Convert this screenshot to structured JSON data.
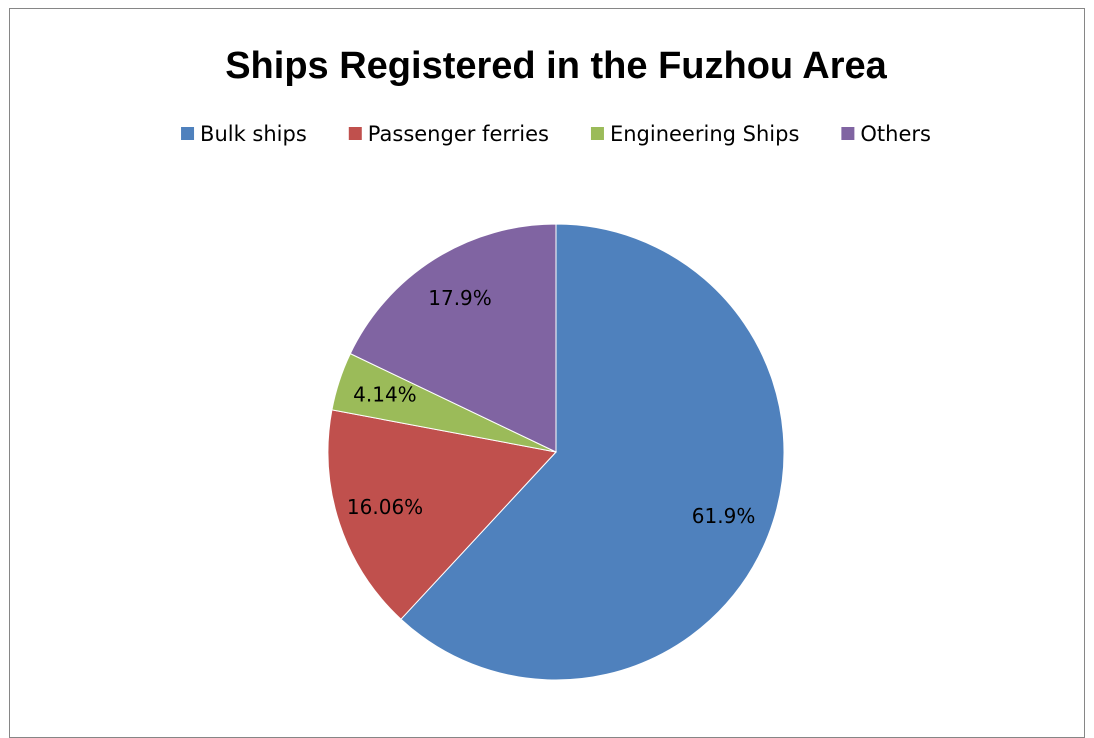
{
  "chart_data": {
    "type": "pie",
    "title": "Ships Registered in the Fuzhou Area",
    "categories": [
      "Bulk ships",
      "Passenger ferries",
      "Engineering Ships",
      "Others"
    ],
    "values": [
      61.9,
      16.06,
      4.14,
      17.9
    ],
    "value_labels": [
      "61.9%",
      "16.06%",
      "4.14%",
      "17.9%"
    ],
    "colors": [
      "#4f81bd",
      "#c0504d",
      "#9bbb59",
      "#8064a2"
    ],
    "legend": "top"
  }
}
